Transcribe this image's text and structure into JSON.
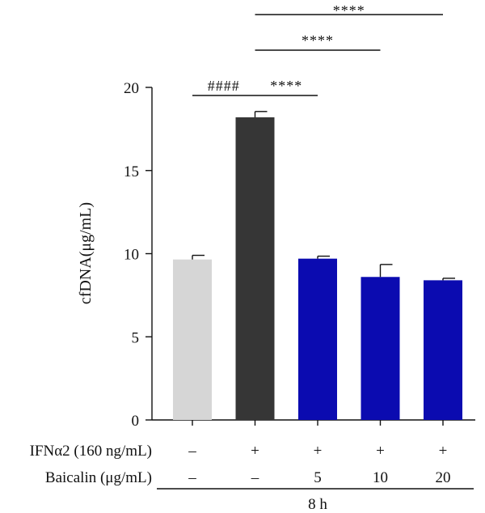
{
  "chart_data": {
    "type": "bar",
    "ylabel": "cfDNA(μg/mL)",
    "ylim": [
      0,
      20
    ],
    "yticks": [
      0,
      5,
      10,
      15,
      20
    ],
    "grid": false,
    "values": [
      9.65,
      18.2,
      9.7,
      8.6,
      8.4
    ],
    "errors": [
      0.25,
      0.35,
      0.15,
      0.75,
      0.12
    ],
    "colors": [
      "#d6d6d6",
      "#363636",
      "#0b0bb0",
      "#0b0bb0",
      "#0b0bb0"
    ],
    "rows": [
      {
        "label": "IFNα2 (160 ng/mL)",
        "values": [
          "–",
          "+",
          "+",
          "+",
          "+"
        ]
      },
      {
        "label": "Baicalin (μg/mL)",
        "values": [
          "–",
          "–",
          "5",
          "10",
          "20"
        ]
      }
    ],
    "footer_label": "8 h",
    "significance": [
      {
        "from": 0,
        "to": 1,
        "text": "####"
      },
      {
        "from": 1,
        "to": 2,
        "text": "****"
      },
      {
        "from": 1,
        "to": 3,
        "text": "****"
      },
      {
        "from": 1,
        "to": 4,
        "text": "****"
      }
    ]
  }
}
